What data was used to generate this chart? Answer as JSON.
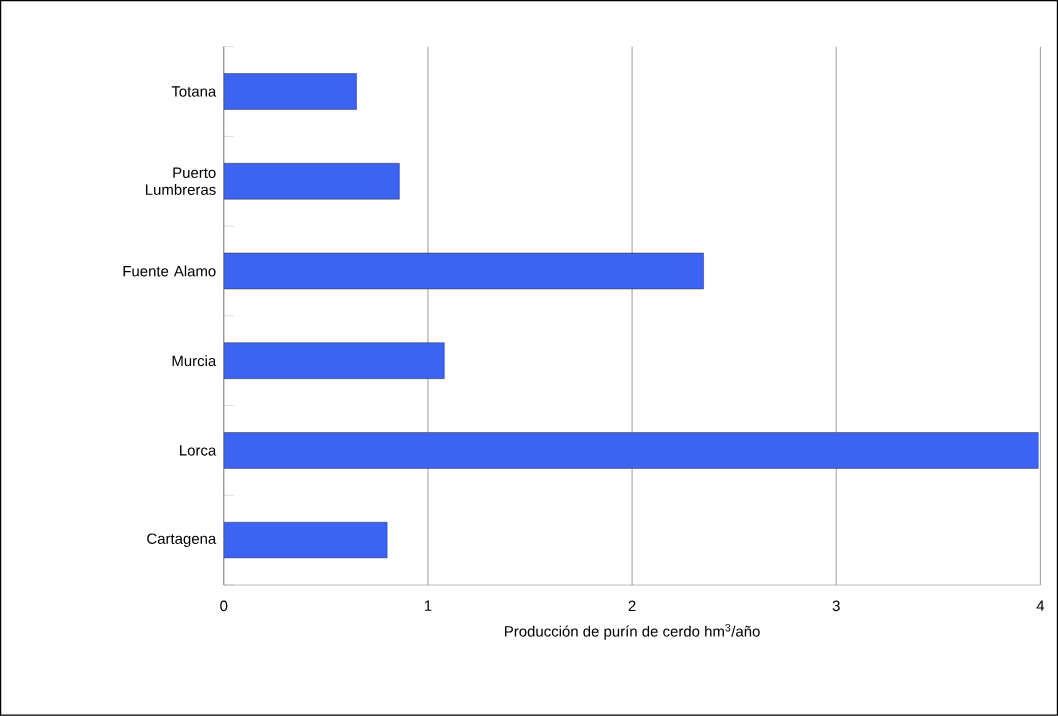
{
  "chart_data": {
    "type": "bar",
    "orientation": "horizontal",
    "xlabel": "Producción de purín de cerdo hm$^{3}$/año",
    "categories": [
      "Totana",
      "Puerto Lumbreras",
      "Fuente Alamo",
      "Murcia",
      "Lorca",
      "Cartagena"
    ],
    "values": [
      0.65,
      0.86,
      2.35,
      1.08,
      3.99,
      0.8
    ],
    "color": "#3d63f2",
    "xlim": [
      0,
      4
    ],
    "xticks": [
      0,
      1,
      2,
      3,
      4
    ],
    "grid": "x"
  }
}
